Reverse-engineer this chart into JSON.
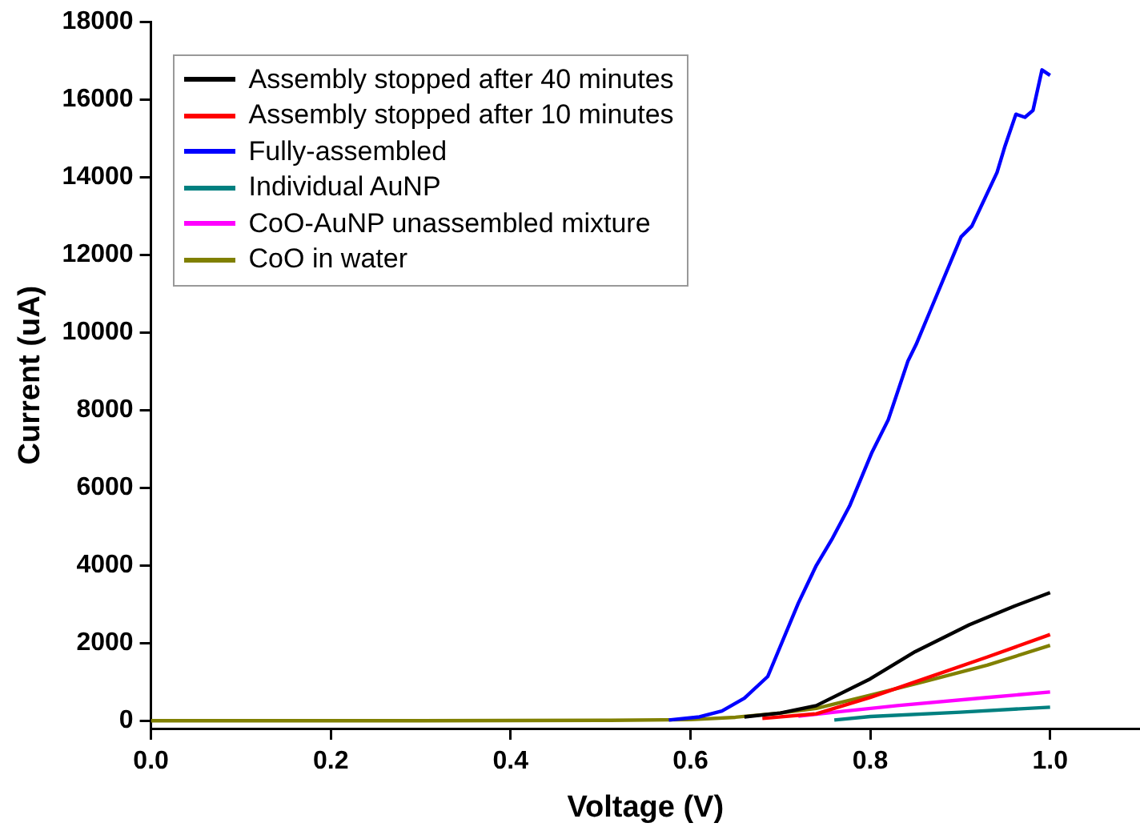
{
  "chart_data": {
    "type": "line",
    "xlabel": "Voltage (V)",
    "ylabel": "Current (uA)",
    "xlim": [
      0,
      1.1
    ],
    "xticks": [
      {
        "value": 0,
        "label": "0.0"
      },
      0.2,
      0.4,
      0.6,
      0.8,
      {
        "value": 1,
        "label": "1.0"
      }
    ],
    "ylim": [
      -200,
      18000
    ],
    "yticks": [
      0,
      2000,
      4000,
      6000,
      8000,
      10000,
      12000,
      14000,
      16000,
      18000
    ],
    "grid": false,
    "legend": "top left",
    "marker": "none",
    "line_style": "solid",
    "series": [
      {
        "name": "Assembly stopped after 40 minutes",
        "color": "#000000",
        "x": [
          0.66,
          0.7,
          0.74,
          0.8,
          0.85,
          0.91,
          0.96,
          1.0
        ],
        "values": [
          100,
          200,
          390,
          1080,
          1780,
          2470,
          2950,
          3300
        ]
      },
      {
        "name": "Assembly stopped after 10 minutes",
        "color": "#ff0000",
        "x": [
          0.68,
          0.74,
          0.8,
          0.86,
          0.93,
          1.0
        ],
        "values": [
          60,
          180,
          600,
          1080,
          1640,
          2220
        ]
      },
      {
        "name": "Fully-assembled",
        "color": "#0000ff",
        "x": [
          0.576,
          0.61,
          0.635,
          0.66,
          0.686,
          0.72,
          0.74,
          0.758,
          0.777,
          0.802,
          0.82,
          0.842,
          0.851,
          0.866,
          0.901,
          0.913,
          0.941,
          0.95,
          0.962,
          0.972,
          0.981,
          0.991,
          1.0
        ],
        "values": [
          20,
          100,
          250,
          580,
          1140,
          3030,
          4000,
          4700,
          5530,
          6920,
          7750,
          9270,
          9690,
          10520,
          12460,
          12740,
          14120,
          14810,
          15620,
          15540,
          15720,
          16760,
          16620
        ]
      },
      {
        "name": "Individual AuNP",
        "color": "#008080",
        "x": [
          0.76,
          0.8,
          0.9,
          1.0
        ],
        "values": [
          20,
          110,
          220,
          350
        ]
      },
      {
        "name": "CoO-AuNP unassembled  mixture",
        "color": "#ff00ff",
        "x": [
          0.72,
          0.76,
          0.83,
          0.93,
          1.0
        ],
        "values": [
          120,
          220,
          390,
          600,
          740
        ]
      },
      {
        "name": "CoO in water",
        "color": "#808000",
        "x": [
          0,
          0.3,
          0.5,
          0.6,
          0.65,
          0.7,
          0.74,
          0.8,
          0.86,
          0.93,
          1.0
        ],
        "values": [
          0,
          0,
          10,
          30,
          90,
          200,
          320,
          660,
          1010,
          1430,
          1940
        ]
      }
    ]
  }
}
